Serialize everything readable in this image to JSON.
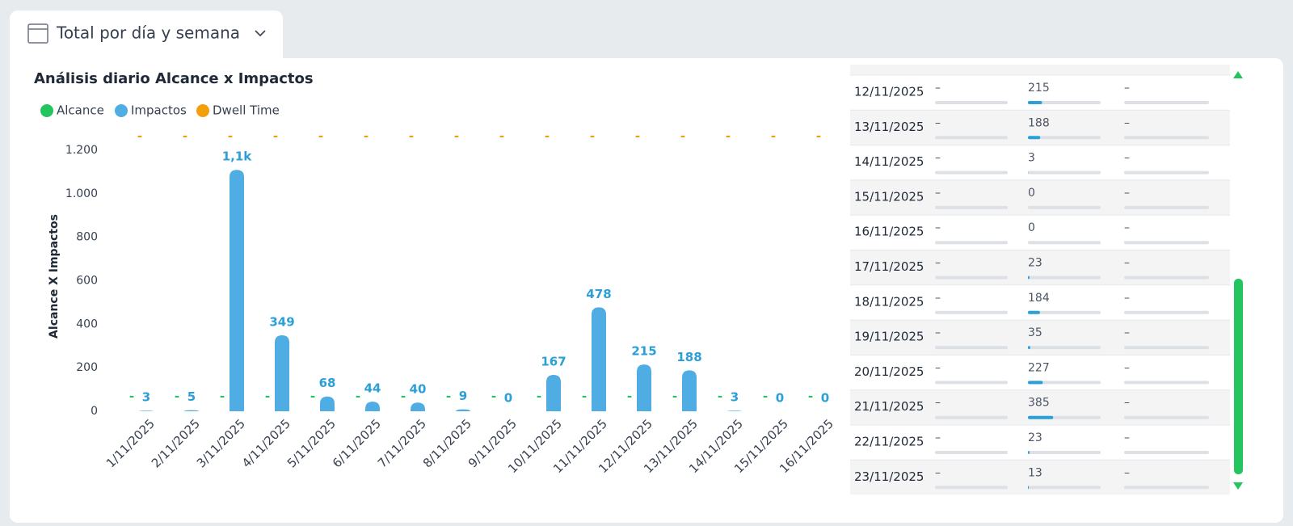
{
  "tab": {
    "title": "Total por día y semana"
  },
  "chart_data": {
    "type": "bar",
    "title": "Análisis diario Alcance x Impactos",
    "y_label": "Alcance X Impactos",
    "categories": [
      "1/11/2025",
      "2/11/2025",
      "3/11/2025",
      "4/11/2025",
      "5/11/2025",
      "6/11/2025",
      "7/11/2025",
      "8/11/2025",
      "9/11/2025",
      "10/11/2025",
      "11/11/2025",
      "12/11/2025",
      "13/11/2025",
      "14/11/2025",
      "15/11/2025",
      "16/11/2025"
    ],
    "series": [
      {
        "name": "Alcance",
        "color": "#22c55e",
        "values": [
          null,
          null,
          null,
          null,
          null,
          null,
          null,
          null,
          null,
          null,
          null,
          null,
          null,
          null,
          null,
          null
        ],
        "value_labels": [
          "-",
          "-",
          "-",
          "-",
          "-",
          "-",
          "-",
          "-",
          "-",
          "-",
          "-",
          "-",
          "-",
          "-",
          "-",
          "-"
        ]
      },
      {
        "name": "Impactos",
        "color": "#4fade3",
        "values": [
          3,
          5,
          1110,
          349,
          68,
          44,
          40,
          9,
          0,
          167,
          478,
          215,
          188,
          3,
          0,
          0
        ],
        "value_labels": [
          "3",
          "5",
          "1,1k",
          "349",
          "68",
          "44",
          "40",
          "9",
          "0",
          "167",
          "478",
          "215",
          "188",
          "3",
          "0",
          "0"
        ]
      },
      {
        "name": "Dwell Time",
        "color": "#f59e0b",
        "values": [
          null,
          null,
          null,
          null,
          null,
          null,
          null,
          null,
          null,
          null,
          null,
          null,
          null,
          null,
          null,
          null
        ],
        "value_labels": [
          "-",
          "-",
          "-",
          "-",
          "-",
          "-",
          "-",
          "-",
          "-",
          "-",
          "-",
          "-",
          "-",
          "-",
          "-",
          "-"
        ]
      }
    ],
    "ylim": [
      0,
      1200
    ],
    "yticks": [
      0,
      200,
      400,
      600,
      800,
      {
        "value": 1000,
        "label": "1.000"
      },
      {
        "value": 1200,
        "label": "1.200"
      }
    ]
  },
  "table": {
    "rows": [
      [
        "12/11/2025",
        "–",
        215,
        "–"
      ],
      [
        "13/11/2025",
        "–",
        188,
        "–"
      ],
      [
        "14/11/2025",
        "–",
        3,
        "–"
      ],
      [
        "15/11/2025",
        "–",
        0,
        "–"
      ],
      [
        "16/11/2025",
        "–",
        0,
        "–"
      ],
      [
        "17/11/2025",
        "–",
        23,
        "–"
      ],
      [
        "18/11/2025",
        "–",
        184,
        "–"
      ],
      [
        "19/11/2025",
        "–",
        35,
        "–"
      ],
      [
        "20/11/2025",
        "–",
        227,
        "–"
      ],
      [
        "21/11/2025",
        "–",
        385,
        "–"
      ],
      [
        "22/11/2025",
        "–",
        23,
        "–"
      ],
      [
        "23/11/2025",
        "–",
        13,
        "–"
      ]
    ]
  }
}
